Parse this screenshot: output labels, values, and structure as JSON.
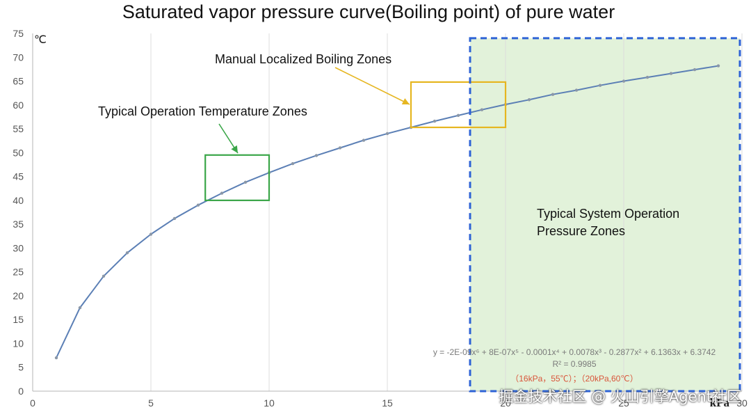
{
  "title": "Saturated vapor pressure curve(Boiling point) of pure water",
  "watermark": "掘金技术社区 @ 火山引擎Agent社区",
  "colors": {
    "curve": "#5b7fb5",
    "point": "#8a97a8",
    "green_box": "#3aa648",
    "yellow_box": "#e6b620",
    "blue_dash": "#2e63d6",
    "green_fill": "#e2f2da",
    "grid": "#dcdcdc",
    "annotation_red": "#d9553a",
    "formula_gray": "#7a7a7a"
  },
  "chart_data": {
    "type": "scatter",
    "title": "Saturated vapor pressure curve(Boiling point) of pure water",
    "xlabel": "kPa",
    "ylabel": "℃",
    "xlim": [
      0,
      30
    ],
    "ylim": [
      0,
      75
    ],
    "x_ticks": [
      0,
      5,
      10,
      15,
      20,
      25,
      30
    ],
    "y_ticks": [
      0,
      5,
      10,
      15,
      20,
      25,
      30,
      35,
      40,
      45,
      50,
      55,
      60,
      65,
      70,
      75
    ],
    "grid": "vertical",
    "series": [
      {
        "name": "",
        "x": [
          1,
          2,
          3,
          4,
          5,
          6,
          7,
          8,
          9,
          10,
          11,
          12,
          13,
          14,
          15,
          16,
          17,
          18,
          19,
          20,
          21,
          22,
          23,
          24,
          25,
          26,
          27,
          28,
          29
        ],
        "y": [
          7,
          17.5,
          24.1,
          29,
          32.9,
          36.2,
          39,
          41.5,
          43.8,
          45.8,
          47.7,
          49.4,
          51,
          52.6,
          54,
          55.3,
          56.6,
          57.8,
          59,
          60.1,
          61.1,
          62.2,
          63.1,
          64.1,
          65,
          65.8,
          66.6,
          67.4,
          68.2
        ]
      }
    ],
    "trendline": {
      "type": "polynomial",
      "equation": "y = -2E-09x⁶ + 8E-07x⁵ - 0.0001x⁴ + 0.0078x³ - 0.2877x² + 6.1363x + 6.3742",
      "r_squared": "R² = 0.9985"
    },
    "annotations": [
      {
        "label": "Typical Operation Temperature Zones",
        "x_range": [
          7.3,
          10
        ],
        "y_range": [
          40,
          49.5
        ],
        "color": "green"
      },
      {
        "label": "Manual Localized Boiling Zones",
        "x_range": [
          16,
          20
        ],
        "y_range": [
          55.3,
          64.8
        ],
        "color": "yellow"
      },
      {
        "label": "Typical System Operation Pressure Zones",
        "x_range": [
          18.5,
          30
        ],
        "y_range": [
          0,
          74
        ],
        "color": "blue-dashed"
      }
    ],
    "note": "（16kPa，55℃）；（20kPa,60℃）"
  }
}
